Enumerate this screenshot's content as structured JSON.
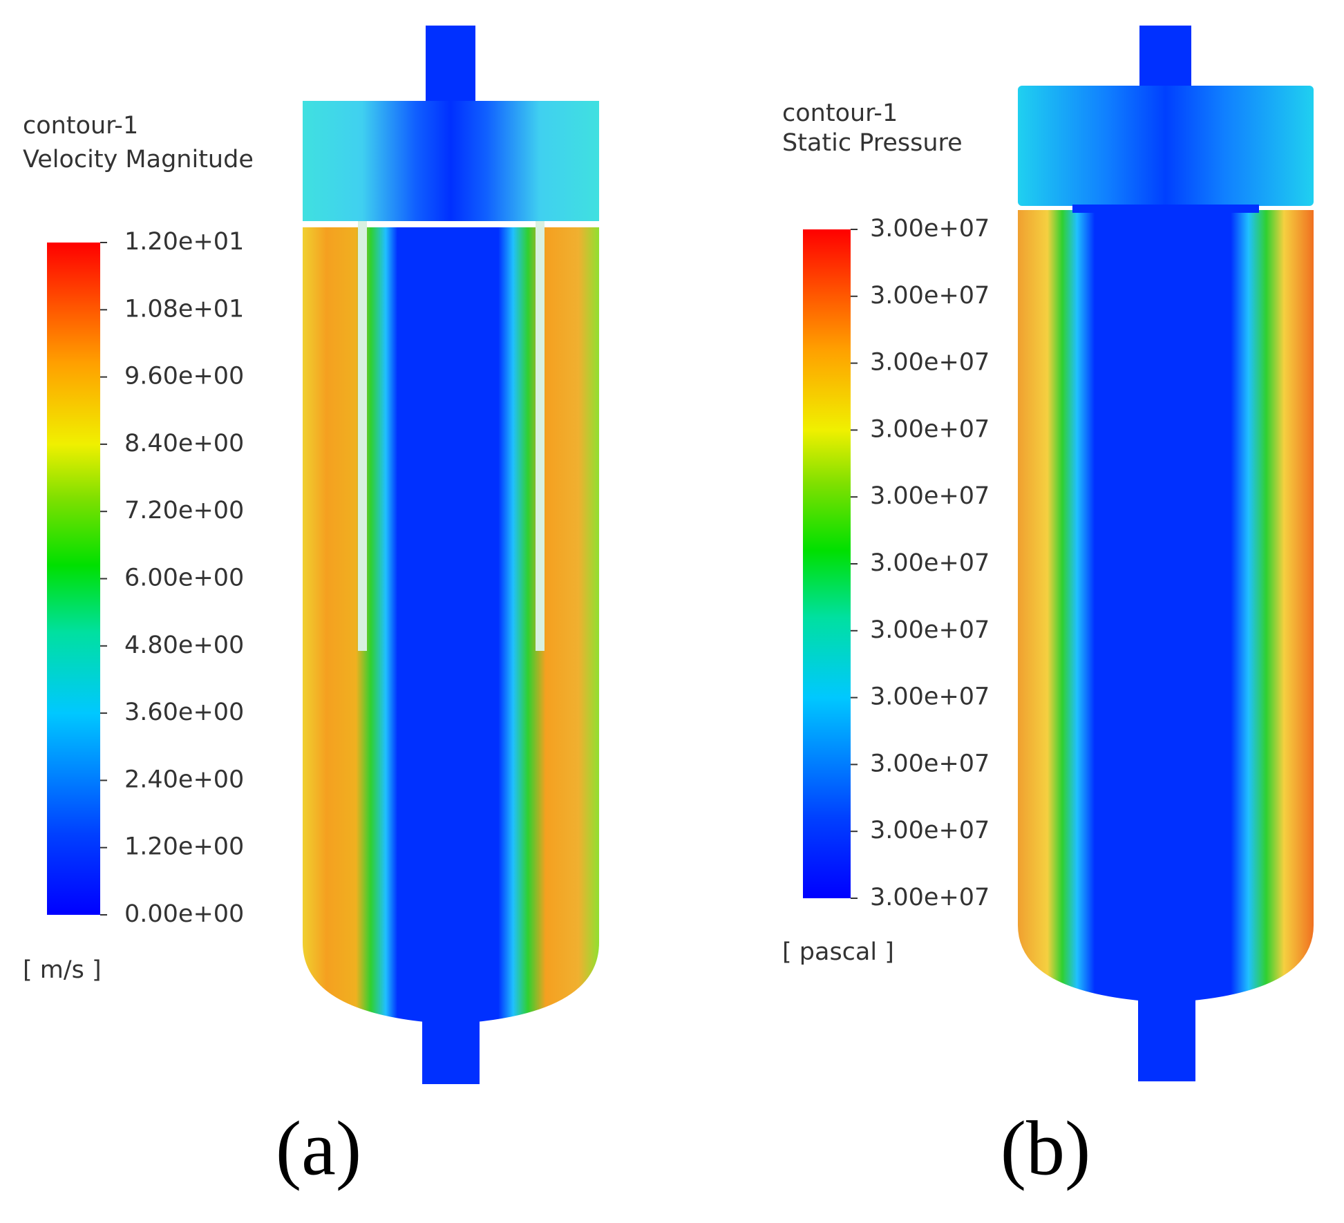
{
  "panels": [
    {
      "title": "contour-1",
      "subtitle": "Velocity Magnitude",
      "colorbar_labels": [
        "1.20e+01",
        "1.08e+01",
        "9.60e+00",
        "8.40e+00",
        "7.20e+00",
        "6.00e+00",
        "4.80e+00",
        "3.60e+00",
        "2.40e+00",
        "1.20e+00",
        "0.00e+00"
      ],
      "unit": "[ m/s ]",
      "caption": "(a)"
    },
    {
      "title": "contour-1",
      "subtitle": "Static Pressure",
      "colorbar_labels": [
        "3.00e+07",
        "3.00e+07",
        "3.00e+07",
        "3.00e+07",
        "3.00e+07",
        "3.00e+07",
        "3.00e+07",
        "3.00e+07",
        "3.00e+07",
        "3.00e+07",
        "3.00e+07"
      ],
      "unit": "[ pascal ]",
      "caption": "(b)"
    }
  ]
}
